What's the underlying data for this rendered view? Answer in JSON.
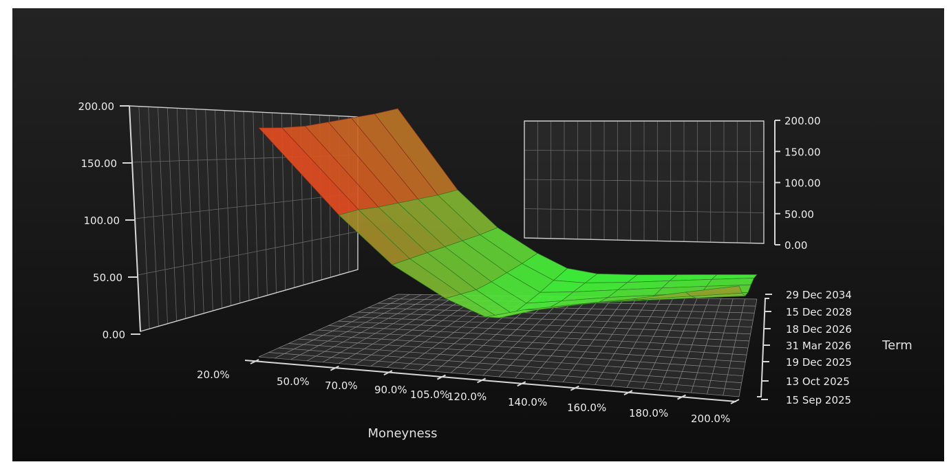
{
  "chart_data": {
    "type": "surface",
    "title": "",
    "xlabel": "Moneyness",
    "ylabel": "Term",
    "zlabel": "",
    "x_tick_labels": [
      "20.0%",
      "50.0%",
      "70.0%",
      "90.0%",
      "105.0%",
      "120.0%",
      "140.0%",
      "160.0%",
      "180.0%",
      "200.0%"
    ],
    "y_tick_labels": [
      "15 Sep 2025",
      "13 Oct 2025",
      "19 Dec 2025",
      "31 Mar 2026",
      "18 Dec 2026",
      "15 Dec 2028",
      "29 Dec 2034"
    ],
    "z_tick_labels_left": [
      "0.00",
      "50.00",
      "100.00",
      "150.00",
      "200.00"
    ],
    "z_tick_labels_right": [
      "0.00",
      "50.00",
      "100.00",
      "150.00",
      "200.00"
    ],
    "zlim": [
      0,
      200
    ],
    "moneyness_pct": [
      20,
      50,
      70,
      90,
      105,
      120,
      140,
      160,
      180,
      200
    ],
    "term_dates": [
      "2025-09-15",
      "2025-10-13",
      "2025-12-19",
      "2026-03-31",
      "2026-12-18",
      "2028-12-15",
      "2034-12-29"
    ],
    "z_values": [
      [
        180,
        120,
        85,
        62,
        50,
        60,
        70,
        80,
        92,
        104
      ],
      [
        172,
        115,
        80,
        55,
        38,
        48,
        58,
        66,
        74,
        82
      ],
      [
        165,
        108,
        75,
        48,
        30,
        38,
        46,
        52,
        58,
        64
      ],
      [
        160,
        102,
        70,
        44,
        28,
        32,
        38,
        43,
        48,
        52
      ],
      [
        155,
        96,
        65,
        41,
        26,
        28,
        32,
        36,
        40,
        44
      ],
      [
        150,
        90,
        60,
        38,
        25,
        24,
        26,
        29,
        32,
        35
      ],
      [
        146,
        85,
        56,
        36,
        24,
        20,
        20,
        21,
        22,
        23
      ]
    ],
    "colors": {
      "low": "#3cff3c",
      "high": "#ff2a1a",
      "background": "#1a1a1a"
    },
    "grid": true
  }
}
